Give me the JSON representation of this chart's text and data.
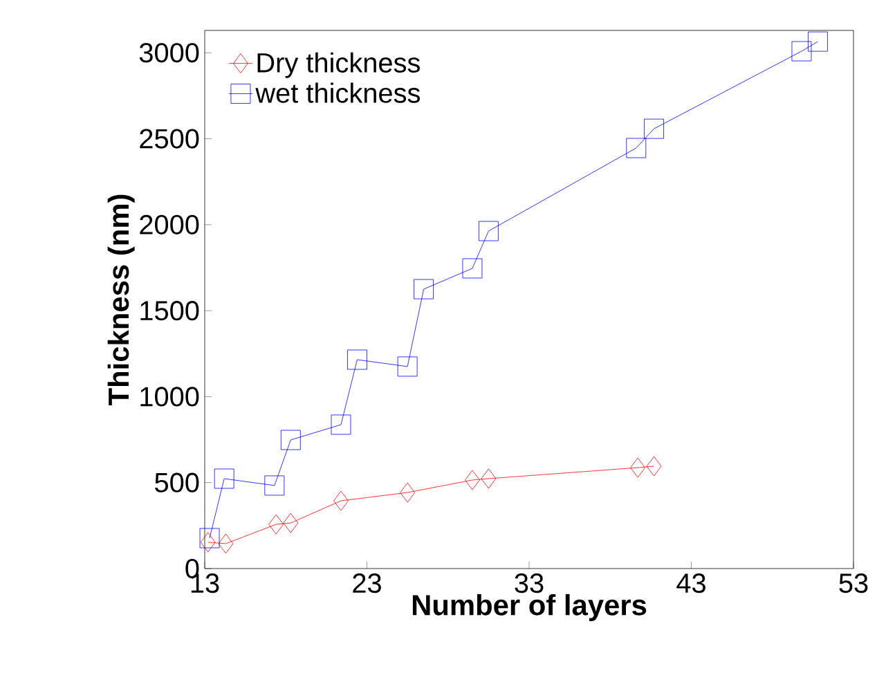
{
  "chart_data": {
    "type": "line",
    "xlabel": "Number of layers",
    "ylabel": "Thickness (nm)",
    "xlim": [
      13,
      53
    ],
    "xticks": [
      13,
      23,
      33,
      43,
      53
    ],
    "ylim": [
      0,
      3130
    ],
    "yticks": [
      0,
      500,
      1000,
      1500,
      2000,
      2500,
      3000
    ],
    "grid": false,
    "legend": "top left",
    "series": [
      {
        "name": "Dry thickness",
        "color": "#ff0000",
        "marker": "diamond",
        "x": [
          13.2,
          14.3,
          17.4,
          18.3,
          21.4,
          25.5,
          29.5,
          30.5,
          39.7,
          40.7
        ],
        "values": [
          153,
          145,
          257,
          265,
          394,
          442,
          515,
          523,
          587,
          595
        ]
      },
      {
        "name": "wet thickness",
        "color": "#0000ff",
        "marker": "square",
        "x": [
          13.3,
          14.2,
          17.3,
          18.3,
          21.4,
          22.4,
          25.5,
          26.5,
          29.5,
          30.5,
          39.6,
          40.7,
          49.8,
          50.8
        ],
        "values": [
          177,
          523,
          483,
          748,
          837,
          1215,
          1175,
          1625,
          1746,
          1963,
          2446,
          2558,
          3009,
          3065
        ]
      }
    ]
  }
}
